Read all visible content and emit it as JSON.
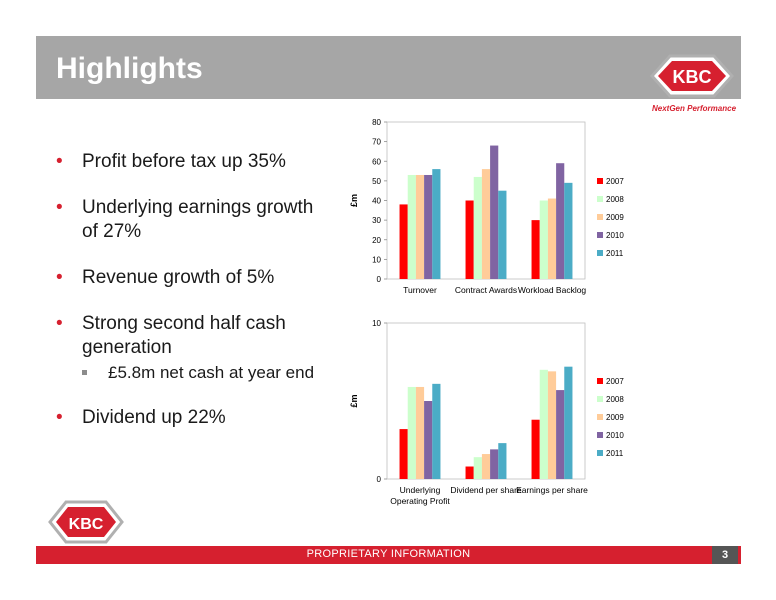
{
  "header": {
    "title": "Highlights"
  },
  "brand": {
    "logo_text": "KBC",
    "tagline": "NextGen Performance"
  },
  "bullets": [
    {
      "text": "Profit before tax up 35%"
    },
    {
      "text": "Underlying earnings growth of 27%"
    },
    {
      "text": "Revenue growth of 5%"
    },
    {
      "text": "Strong second half cash generation",
      "sub": "£5.8m net cash at year end"
    },
    {
      "text": "Dividend up 22%"
    }
  ],
  "footer": {
    "label": "PROPRIETARY INFORMATION",
    "page": "3"
  },
  "colors": {
    "accent": "#d6202f",
    "title_bar": "#a6a6a6",
    "2007": "#ff0000",
    "2008": "#ccffcc",
    "2009": "#ffcc99",
    "2010": "#8064a2",
    "2011": "#4bacc6"
  },
  "chart_data": [
    {
      "type": "bar",
      "ylabel": "£m",
      "ylim": [
        0,
        80
      ],
      "yticks": [
        0,
        10,
        20,
        30,
        40,
        50,
        60,
        70,
        80
      ],
      "categories": [
        "Turnover",
        "Contract Awards",
        "Workload Backlog"
      ],
      "legend_position": "right",
      "grid": false,
      "series": [
        {
          "name": "2007",
          "color": "#ff0000",
          "values": [
            38,
            40,
            30
          ]
        },
        {
          "name": "2008",
          "color": "#ccffcc",
          "values": [
            53,
            52,
            40
          ]
        },
        {
          "name": "2009",
          "color": "#ffcc99",
          "values": [
            53,
            56,
            41
          ]
        },
        {
          "name": "2010",
          "color": "#8064a2",
          "values": [
            53,
            68,
            59
          ]
        },
        {
          "name": "2011",
          "color": "#4bacc6",
          "values": [
            56,
            45,
            49
          ]
        }
      ]
    },
    {
      "type": "bar",
      "ylabel": "£m",
      "ylim": [
        0,
        10
      ],
      "yticks": [
        0,
        10
      ],
      "categories": [
        "Underlying Operating Profit",
        "Dividend per share",
        "Earnings per share"
      ],
      "legend_position": "right",
      "grid": false,
      "series": [
        {
          "name": "2007",
          "color": "#ff0000",
          "values": [
            3.2,
            0.8,
            3.8
          ]
        },
        {
          "name": "2008",
          "color": "#ccffcc",
          "values": [
            5.9,
            1.4,
            7.0
          ]
        },
        {
          "name": "2009",
          "color": "#ffcc99",
          "values": [
            5.9,
            1.6,
            6.9
          ]
        },
        {
          "name": "2010",
          "color": "#8064a2",
          "values": [
            5.0,
            1.9,
            5.7
          ]
        },
        {
          "name": "2011",
          "color": "#4bacc6",
          "values": [
            6.1,
            2.3,
            7.2
          ]
        }
      ]
    }
  ]
}
